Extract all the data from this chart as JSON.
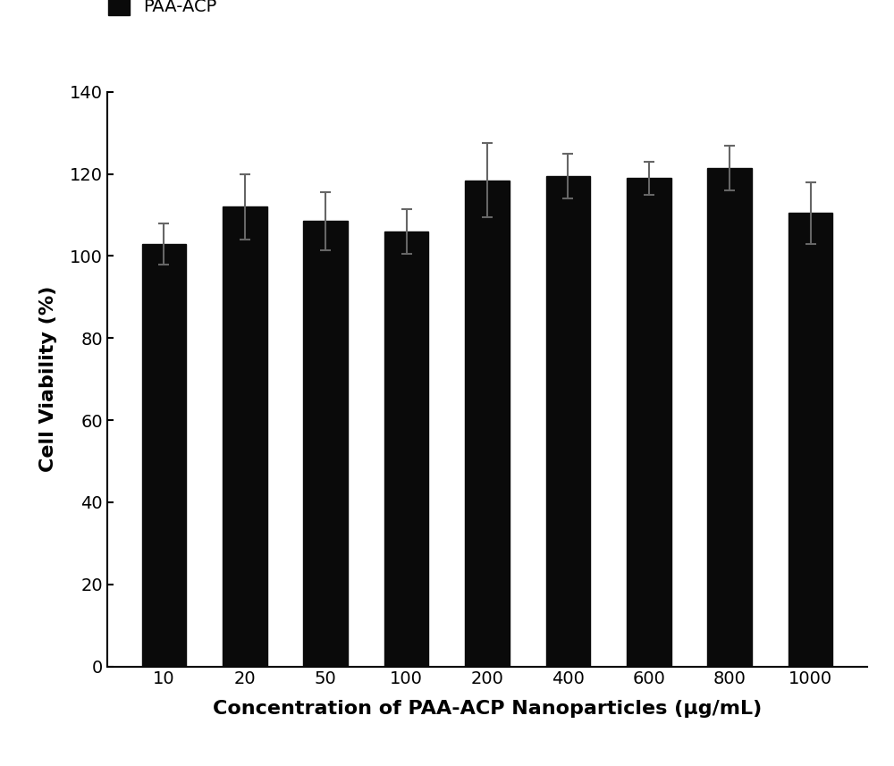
{
  "categories": [
    "10",
    "20",
    "50",
    "100",
    "200",
    "400",
    "600",
    "800",
    "1000"
  ],
  "values": [
    103.0,
    112.0,
    108.5,
    106.0,
    118.5,
    119.5,
    119.0,
    121.5,
    110.5
  ],
  "errors": [
    5.0,
    8.0,
    7.0,
    5.5,
    9.0,
    5.5,
    4.0,
    5.5,
    7.5
  ],
  "bar_color": "#0a0a0a",
  "error_color": "#666666",
  "ylabel": "Cell Viability (%)",
  "xlabel": "Concentration of PAA-ACP Nanoparticles (μg/mL)",
  "ylim": [
    0,
    140
  ],
  "yticks": [
    0,
    20,
    40,
    60,
    80,
    100,
    120,
    140
  ],
  "legend_label": "PAA-ACP",
  "background_color": "#ffffff",
  "bar_width": 0.55,
  "ylabel_fontsize": 16,
  "xlabel_fontsize": 16,
  "tick_fontsize": 14,
  "legend_fontsize": 14,
  "capsize": 4,
  "error_linewidth": 1.5
}
